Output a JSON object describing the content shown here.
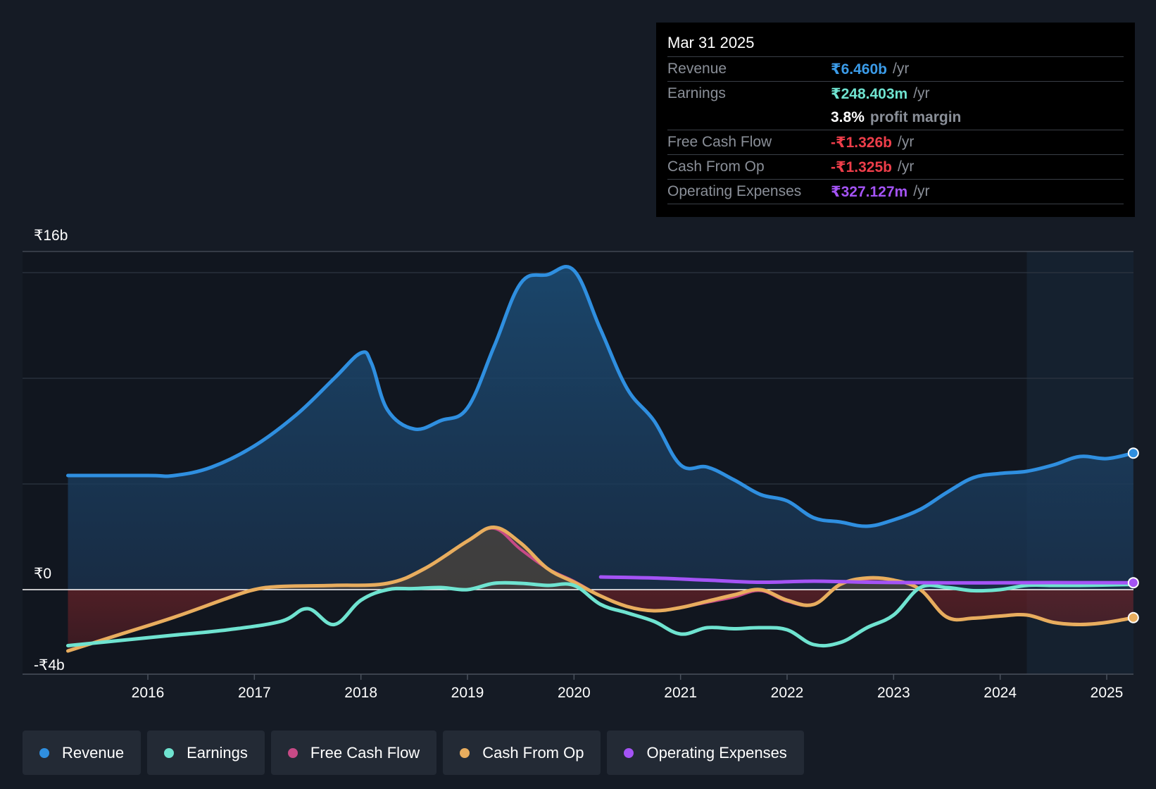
{
  "tooltip": {
    "date": "Mar 31 2025",
    "rows": [
      {
        "label": "Revenue",
        "value": "₹6.460b",
        "unit": "/yr",
        "color": "#3b9be8"
      },
      {
        "label": "Earnings",
        "value": "₹248.403m",
        "unit": "/yr",
        "color": "#6fe3d0"
      },
      {
        "label": "",
        "value": "3.8%",
        "unit": "profit margin",
        "color": "#ffffff"
      },
      {
        "label": "Free Cash Flow",
        "value": "-₹1.326b",
        "unit": "/yr",
        "color": "#ee3e4a"
      },
      {
        "label": "Cash From Op",
        "value": "-₹1.325b",
        "unit": "/yr",
        "color": "#ee3e4a"
      },
      {
        "label": "Operating Expenses",
        "value": "₹327.127m",
        "unit": "/yr",
        "color": "#a453f5"
      }
    ]
  },
  "legend": [
    {
      "label": "Revenue",
      "color": "#2f8fe0"
    },
    {
      "label": "Earnings",
      "color": "#6fe3d0"
    },
    {
      "label": "Free Cash Flow",
      "color": "#c74a86"
    },
    {
      "label": "Cash From Op",
      "color": "#e8ad5e"
    },
    {
      "label": "Operating Expenses",
      "color": "#a453f5"
    }
  ],
  "chart_data": {
    "type": "line",
    "title": "",
    "xlabel": "",
    "ylabel": "",
    "ylim": [
      -4,
      16
    ],
    "y_tick_labels": [
      {
        "value": 16,
        "label": "₹16b"
      },
      {
        "value": 0,
        "label": "₹0"
      },
      {
        "value": -4,
        "label": "-₹4b"
      }
    ],
    "gridlines": [
      16,
      15,
      10,
      5,
      0
    ],
    "xlim": [
      2015.25,
      2025.25
    ],
    "x_ticks": [
      2016,
      2017,
      2018,
      2019,
      2020,
      2021,
      2022,
      2023,
      2024,
      2025
    ],
    "x_tick_labels": [
      "2016",
      "2017",
      "2018",
      "2019",
      "2020",
      "2021",
      "2022",
      "2023",
      "2024",
      "2025"
    ],
    "forecast_start": 2024.25,
    "series": [
      {
        "name": "Revenue",
        "color": "#2f8fe0",
        "points": [
          [
            2015.25,
            5.4
          ],
          [
            2016.0,
            5.4
          ],
          [
            2016.25,
            5.4
          ],
          [
            2016.6,
            5.8
          ],
          [
            2017.0,
            6.8
          ],
          [
            2017.4,
            8.3
          ],
          [
            2017.75,
            10.0
          ],
          [
            2018.0,
            11.2
          ],
          [
            2018.1,
            10.7
          ],
          [
            2018.25,
            8.5
          ],
          [
            2018.5,
            7.6
          ],
          [
            2018.75,
            8.0
          ],
          [
            2019.0,
            8.6
          ],
          [
            2019.25,
            11.5
          ],
          [
            2019.5,
            14.5
          ],
          [
            2019.75,
            14.9
          ],
          [
            2020.0,
            15.1
          ],
          [
            2020.25,
            12.3
          ],
          [
            2020.5,
            9.5
          ],
          [
            2020.75,
            8.0
          ],
          [
            2021.0,
            5.9
          ],
          [
            2021.25,
            5.8
          ],
          [
            2021.5,
            5.2
          ],
          [
            2021.75,
            4.5
          ],
          [
            2022.0,
            4.2
          ],
          [
            2022.25,
            3.4
          ],
          [
            2022.5,
            3.2
          ],
          [
            2022.75,
            3.0
          ],
          [
            2023.0,
            3.3
          ],
          [
            2023.25,
            3.8
          ],
          [
            2023.5,
            4.6
          ],
          [
            2023.75,
            5.3
          ],
          [
            2024.0,
            5.5
          ],
          [
            2024.25,
            5.6
          ],
          [
            2024.5,
            5.9
          ],
          [
            2024.75,
            6.3
          ],
          [
            2025.0,
            6.2
          ],
          [
            2025.25,
            6.46
          ]
        ]
      },
      {
        "name": "Earnings",
        "color": "#6fe3d0",
        "points": [
          [
            2015.25,
            -2.65
          ],
          [
            2015.75,
            -2.4
          ],
          [
            2016.25,
            -2.15
          ],
          [
            2016.75,
            -1.9
          ],
          [
            2017.25,
            -1.5
          ],
          [
            2017.5,
            -0.9
          ],
          [
            2017.75,
            -1.65
          ],
          [
            2018.0,
            -0.5
          ],
          [
            2018.25,
            0.0
          ],
          [
            2018.5,
            0.05
          ],
          [
            2018.75,
            0.1
          ],
          [
            2019.0,
            0.0
          ],
          [
            2019.25,
            0.3
          ],
          [
            2019.5,
            0.3
          ],
          [
            2019.75,
            0.2
          ],
          [
            2020.0,
            0.2
          ],
          [
            2020.25,
            -0.7
          ],
          [
            2020.5,
            -1.1
          ],
          [
            2020.75,
            -1.5
          ],
          [
            2021.0,
            -2.1
          ],
          [
            2021.25,
            -1.8
          ],
          [
            2021.5,
            -1.85
          ],
          [
            2021.75,
            -1.8
          ],
          [
            2022.0,
            -1.9
          ],
          [
            2022.25,
            -2.6
          ],
          [
            2022.5,
            -2.5
          ],
          [
            2022.75,
            -1.8
          ],
          [
            2023.0,
            -1.2
          ],
          [
            2023.25,
            0.1
          ],
          [
            2023.5,
            0.1
          ],
          [
            2023.75,
            -0.05
          ],
          [
            2024.0,
            0.0
          ],
          [
            2024.25,
            0.2
          ],
          [
            2024.5,
            0.2
          ],
          [
            2024.75,
            0.2
          ],
          [
            2025.0,
            0.22
          ],
          [
            2025.25,
            0.248
          ]
        ]
      },
      {
        "name": "Free Cash Flow",
        "color": "#c74a86",
        "points": [
          [
            2015.25,
            -2.9
          ],
          [
            2015.75,
            -2.1
          ],
          [
            2016.25,
            -1.3
          ],
          [
            2016.75,
            -0.4
          ],
          [
            2017.0,
            0.0
          ],
          [
            2017.25,
            0.15
          ],
          [
            2017.75,
            0.2
          ],
          [
            2018.25,
            0.3
          ],
          [
            2018.6,
            1.0
          ],
          [
            2019.0,
            2.3
          ],
          [
            2019.25,
            2.9
          ],
          [
            2019.5,
            1.9
          ],
          [
            2019.75,
            1.0
          ],
          [
            2020.0,
            0.4
          ],
          [
            2020.25,
            -0.3
          ],
          [
            2020.5,
            -0.8
          ],
          [
            2020.75,
            -1.0
          ],
          [
            2021.0,
            -0.85
          ],
          [
            2021.25,
            -0.6
          ],
          [
            2021.5,
            -0.35
          ],
          [
            2021.75,
            -0.05
          ],
          [
            2022.0,
            -0.55
          ],
          [
            2022.25,
            -0.7
          ],
          [
            2022.5,
            0.25
          ],
          [
            2022.75,
            0.5
          ],
          [
            2023.0,
            0.45
          ],
          [
            2023.25,
            0.0
          ],
          [
            2023.5,
            -1.3
          ],
          [
            2023.75,
            -1.35
          ],
          [
            2024.0,
            -1.25
          ],
          [
            2024.25,
            -1.2
          ],
          [
            2024.5,
            -1.55
          ],
          [
            2024.75,
            -1.65
          ],
          [
            2025.0,
            -1.55
          ],
          [
            2025.25,
            -1.326
          ]
        ]
      },
      {
        "name": "Cash From Op",
        "color": "#e8ad5e",
        "points": [
          [
            2015.25,
            -2.9
          ],
          [
            2015.75,
            -2.1
          ],
          [
            2016.25,
            -1.3
          ],
          [
            2016.75,
            -0.4
          ],
          [
            2017.0,
            0.0
          ],
          [
            2017.25,
            0.15
          ],
          [
            2017.75,
            0.2
          ],
          [
            2018.25,
            0.3
          ],
          [
            2018.6,
            1.0
          ],
          [
            2019.0,
            2.3
          ],
          [
            2019.25,
            2.95
          ],
          [
            2019.5,
            2.2
          ],
          [
            2019.75,
            1.0
          ],
          [
            2020.0,
            0.35
          ],
          [
            2020.25,
            -0.3
          ],
          [
            2020.5,
            -0.8
          ],
          [
            2020.75,
            -1.0
          ],
          [
            2021.0,
            -0.85
          ],
          [
            2021.25,
            -0.55
          ],
          [
            2021.5,
            -0.25
          ],
          [
            2021.75,
            0.0
          ],
          [
            2022.0,
            -0.5
          ],
          [
            2022.25,
            -0.7
          ],
          [
            2022.5,
            0.25
          ],
          [
            2022.75,
            0.55
          ],
          [
            2023.0,
            0.45
          ],
          [
            2023.25,
            0.0
          ],
          [
            2023.5,
            -1.3
          ],
          [
            2023.75,
            -1.35
          ],
          [
            2024.0,
            -1.25
          ],
          [
            2024.25,
            -1.2
          ],
          [
            2024.5,
            -1.55
          ],
          [
            2024.75,
            -1.65
          ],
          [
            2025.0,
            -1.55
          ],
          [
            2025.25,
            -1.325
          ]
        ]
      },
      {
        "name": "Operating Expenses",
        "color": "#a453f5",
        "points": [
          [
            2020.25,
            0.6
          ],
          [
            2020.75,
            0.55
          ],
          [
            2021.25,
            0.45
          ],
          [
            2021.75,
            0.35
          ],
          [
            2022.25,
            0.4
          ],
          [
            2022.75,
            0.35
          ],
          [
            2023.25,
            0.33
          ],
          [
            2023.75,
            0.32
          ],
          [
            2024.25,
            0.33
          ],
          [
            2024.75,
            0.33
          ],
          [
            2025.25,
            0.327
          ]
        ]
      }
    ]
  }
}
